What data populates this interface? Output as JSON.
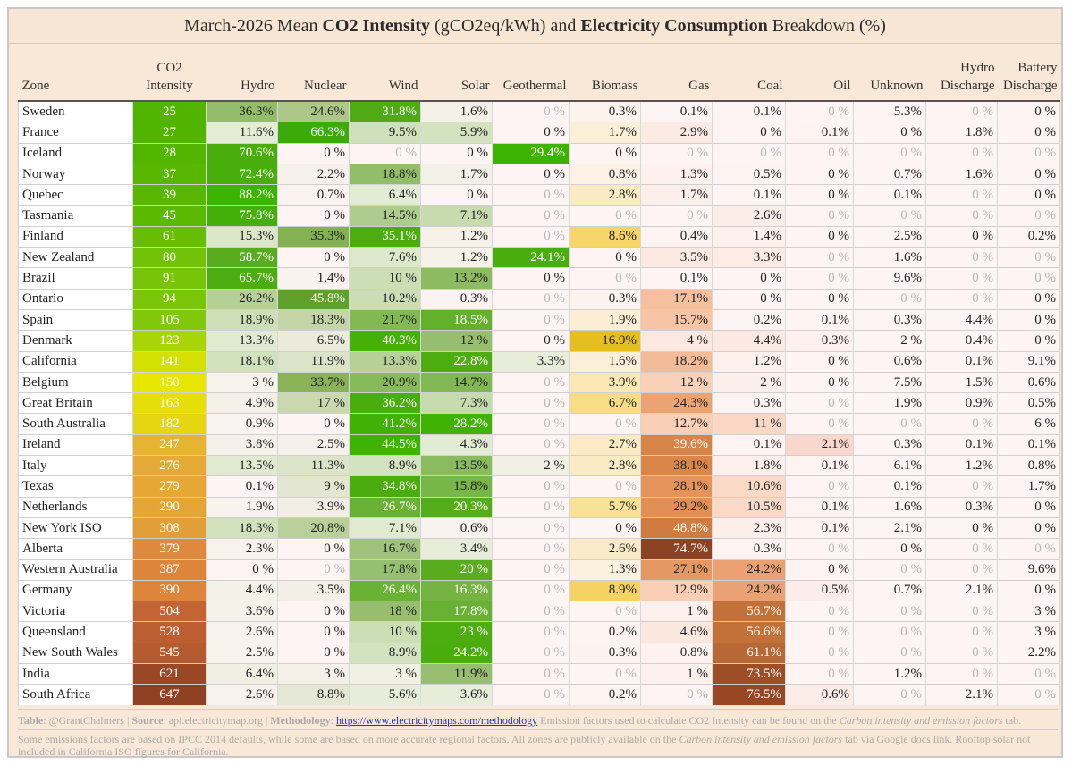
{
  "title": {
    "pre": "March-2026 Mean ",
    "bold1": "CO2 Intensity",
    "mid1": " (gCO2eq/kWh) and ",
    "bold2": "Electricity Consumption",
    "post": " Breakdown (%)"
  },
  "headers": {
    "zone": "Zone",
    "ci": [
      "CO2",
      "Intensity"
    ],
    "hydro": "Hydro",
    "nuclear": "Nuclear",
    "wind": "Wind",
    "solar": "Solar",
    "geothermal": "Geothermal",
    "biomass": "Biomass",
    "gas": "Gas",
    "coal": "Coal",
    "oil": "Oil",
    "unknown": "Unknown",
    "hydro_discharge": [
      "Hydro",
      "Discharge"
    ],
    "battery_discharge": [
      "Battery",
      "Discharge"
    ]
  },
  "chart_data": {
    "type": "table",
    "columns": [
      "Zone",
      "CO2 Intensity",
      "Hydro",
      "Nuclear",
      "Wind",
      "Solar",
      "Geothermal",
      "Biomass",
      "Gas",
      "Coal",
      "Oil",
      "Unknown",
      "Hydro Discharge",
      "Battery Discharge"
    ],
    "rows": [
      [
        "Sweden",
        "25",
        "36.3%",
        "24.6%",
        "31.8%",
        "1.6%",
        "0 %",
        "0.3%",
        "0.1%",
        "0.1%",
        "0 %",
        "5.3%",
        "0 %",
        "0 %"
      ],
      [
        "France",
        "27",
        "11.6%",
        "66.3%",
        "9.5%",
        "5.9%",
        "0 %",
        "1.7%",
        "2.9%",
        "0 %",
        "0.1%",
        "0 %",
        "1.8%",
        "0 %"
      ],
      [
        "Iceland",
        "28",
        "70.6%",
        "0 %",
        "0 %",
        "0 %",
        "29.4%",
        "0 %",
        "0 %",
        "0 %",
        "0 %",
        "0 %",
        "0 %",
        "0 %"
      ],
      [
        "Norway",
        "37",
        "72.4%",
        "2.2%",
        "18.8%",
        "1.7%",
        "0 %",
        "0.8%",
        "1.3%",
        "0.5%",
        "0 %",
        "0.7%",
        "1.6%",
        "0 %"
      ],
      [
        "Quebec",
        "39",
        "88.2%",
        "0.7%",
        "6.4%",
        "0 %",
        "0 %",
        "2.8%",
        "1.7%",
        "0.1%",
        "0 %",
        "0.1%",
        "0 %",
        "0 %"
      ],
      [
        "Tasmania",
        "45",
        "75.8%",
        "0 %",
        "14.5%",
        "7.1%",
        "0 %",
        "0 %",
        "0 %",
        "2.6%",
        "0 %",
        "0 %",
        "0 %",
        "0 %"
      ],
      [
        "Finland",
        "61",
        "15.3%",
        "35.3%",
        "35.1%",
        "1.2%",
        "0 %",
        "8.6%",
        "0.4%",
        "1.4%",
        "0 %",
        "2.5%",
        "0 %",
        "0.2%"
      ],
      [
        "New Zealand",
        "80",
        "58.7%",
        "0 %",
        "7.6%",
        "1.2%",
        "24.1%",
        "0 %",
        "3.5%",
        "3.3%",
        "0 %",
        "1.6%",
        "0 %",
        "0 %"
      ],
      [
        "Brazil",
        "91",
        "65.7%",
        "1.4%",
        "10 %",
        "13.2%",
        "0 %",
        "0 %",
        "0.1%",
        "0 %",
        "0 %",
        "9.6%",
        "0 %",
        "0 %"
      ],
      [
        "Ontario",
        "94",
        "26.2%",
        "45.8%",
        "10.2%",
        "0.3%",
        "0 %",
        "0.3%",
        "17.1%",
        "0 %",
        "0 %",
        "0 %",
        "0 %",
        "0 %"
      ],
      [
        "Spain",
        "105",
        "18.9%",
        "18.3%",
        "21.7%",
        "18.5%",
        "0 %",
        "1.9%",
        "15.7%",
        "0.2%",
        "0.1%",
        "0.3%",
        "4.4%",
        "0 %"
      ],
      [
        "Denmark",
        "123",
        "13.3%",
        "6.5%",
        "40.3%",
        "12 %",
        "0 %",
        "16.9%",
        "4 %",
        "4.4%",
        "0.3%",
        "2 %",
        "0.4%",
        "0 %"
      ],
      [
        "California",
        "141",
        "18.1%",
        "11.9%",
        "13.3%",
        "22.8%",
        "3.3%",
        "1.6%",
        "18.2%",
        "1.2%",
        "0 %",
        "0.6%",
        "0.1%",
        "9.1%"
      ],
      [
        "Belgium",
        "150",
        "3 %",
        "33.7%",
        "20.9%",
        "14.7%",
        "0 %",
        "3.9%",
        "12 %",
        "2 %",
        "0 %",
        "7.5%",
        "1.5%",
        "0.6%"
      ],
      [
        "Great Britain",
        "163",
        "4.9%",
        "17 %",
        "36.2%",
        "7.3%",
        "0 %",
        "6.7%",
        "24.3%",
        "0.3%",
        "0 %",
        "1.9%",
        "0.9%",
        "0.5%"
      ],
      [
        "South Australia",
        "182",
        "0.9%",
        "0 %",
        "41.2%",
        "28.2%",
        "0 %",
        "0 %",
        "12.7%",
        "11 %",
        "0 %",
        "0 %",
        "0 %",
        "6 %"
      ],
      [
        "Ireland",
        "247",
        "3.8%",
        "2.5%",
        "44.5%",
        "4.3%",
        "0 %",
        "2.7%",
        "39.6%",
        "0.1%",
        "2.1%",
        "0.3%",
        "0.1%",
        "0.1%"
      ],
      [
        "Italy",
        "276",
        "13.5%",
        "11.3%",
        "8.9%",
        "13.5%",
        "2 %",
        "2.8%",
        "38.1%",
        "1.8%",
        "0.1%",
        "6.1%",
        "1.2%",
        "0.8%"
      ],
      [
        "Texas",
        "279",
        "0.1%",
        "9 %",
        "34.8%",
        "15.8%",
        "0 %",
        "0 %",
        "28.1%",
        "10.6%",
        "0 %",
        "0.1%",
        "0 %",
        "1.7%"
      ],
      [
        "Netherlands",
        "290",
        "1.9%",
        "3.9%",
        "26.7%",
        "20.3%",
        "0 %",
        "5.7%",
        "29.2%",
        "10.5%",
        "0.1%",
        "1.6%",
        "0.3%",
        "0 %"
      ],
      [
        "New York ISO",
        "308",
        "18.3%",
        "20.8%",
        "7.1%",
        "0.6%",
        "0 %",
        "0 %",
        "48.8%",
        "2.3%",
        "0.1%",
        "2.1%",
        "0 %",
        "0 %"
      ],
      [
        "Alberta",
        "379",
        "2.3%",
        "0 %",
        "16.7%",
        "3.4%",
        "0 %",
        "2.6%",
        "74.7%",
        "0.3%",
        "0 %",
        "0 %",
        "0 %",
        "0 %"
      ],
      [
        "Western Australia",
        "387",
        "0 %",
        "0 %",
        "17.8%",
        "20 %",
        "0 %",
        "1.3%",
        "27.1%",
        "24.2%",
        "0 %",
        "0 %",
        "0 %",
        "9.6%"
      ],
      [
        "Germany",
        "390",
        "4.4%",
        "3.5%",
        "26.4%",
        "16.3%",
        "0 %",
        "8.9%",
        "12.9%",
        "24.2%",
        "0.5%",
        "0.7%",
        "2.1%",
        "0 %"
      ],
      [
        "Victoria",
        "504",
        "3.6%",
        "0 %",
        "18 %",
        "17.8%",
        "0 %",
        "0 %",
        "1 %",
        "56.7%",
        "0 %",
        "0 %",
        "0 %",
        "3 %"
      ],
      [
        "Queensland",
        "528",
        "2.6%",
        "0 %",
        "10 %",
        "23 %",
        "0 %",
        "0.2%",
        "4.6%",
        "56.6%",
        "0 %",
        "0 %",
        "0 %",
        "3 %"
      ],
      [
        "New South Wales",
        "545",
        "2.5%",
        "0 %",
        "8.9%",
        "24.2%",
        "0 %",
        "0.3%",
        "0.8%",
        "61.1%",
        "0 %",
        "0 %",
        "0 %",
        "2.2%"
      ],
      [
        "India",
        "621",
        "6.4%",
        "3 %",
        "3 %",
        "11.9%",
        "0 %",
        "0 %",
        "1 %",
        "73.5%",
        "0 %",
        "1.2%",
        "0 %",
        "0 %"
      ],
      [
        "South Africa",
        "647",
        "2.6%",
        "8.8%",
        "5.6%",
        "3.6%",
        "0 %",
        "0.2%",
        "0 %",
        "76.5%",
        "0.6%",
        "0 %",
        "2.1%",
        "0 %"
      ]
    ],
    "highlight": {
      "grey_zero": [
        [
          2,
          5,
          6,
          7,
          8,
          9,
          10,
          11,
          12
        ],
        [],
        [
          4,
          6,
          8,
          9,
          10,
          11,
          12,
          13
        ],
        [
          12
        ],
        [
          6,
          12
        ],
        [
          4,
          6,
          7,
          8,
          10,
          11,
          12,
          13
        ],
        [
          6
        ],
        [
          4,
          8,
          10,
          12,
          13
        ],
        [
          7,
          10,
          12,
          13
        ],
        [
          6,
          11,
          12
        ],
        [
          6
        ],
        [],
        [
          6
        ],
        [
          6
        ],
        [
          6,
          10
        ],
        [
          4,
          6,
          7,
          10,
          11,
          12
        ],
        [
          6
        ],
        [],
        [
          6,
          7,
          10,
          12
        ],
        [
          6
        ],
        [
          6
        ],
        [
          6,
          10,
          12,
          13
        ],
        [
          3,
          4,
          6,
          11,
          12
        ],
        [
          6
        ],
        [
          4,
          6,
          7,
          10,
          11,
          12
        ],
        [
          4,
          6,
          10,
          11,
          12
        ],
        [
          4,
          6,
          10,
          11,
          12
        ],
        [
          6,
          7,
          10,
          12,
          13
        ],
        [
          6,
          8,
          11,
          13
        ]
      ]
    }
  },
  "footer": {
    "line1_table_label": "Table",
    "line1_table_value": ": @GrantChalmers | ",
    "line1_source_label": "Source",
    "line1_source_value": ": api.electricitymap.org | ",
    "line1_method_label": "Methodology",
    "line1_method_sep": ": ",
    "line1_link": "https://www.electricitymaps.com/methodology",
    "line1_rest": " Emission factors used to calculate CO2 Intensity can be found on the ",
    "line1_italic": "Carbon intensity and emission factors",
    "line1_tail": " tab.",
    "line2_a": "Some emissions factors are based on IPCC 2014 defaults, while some are based on more accurate regional factors. All zones are publicly available on the ",
    "line2_italic": "Carbon intensity and emission factors",
    "line2_b": " tab via Google docs link. Rooftop solar not included in California ISO figures for California."
  },
  "colors": {
    "background": "#f9e8d7",
    "link": "#1a36c9",
    "zero_text": "#b8b8b8"
  }
}
